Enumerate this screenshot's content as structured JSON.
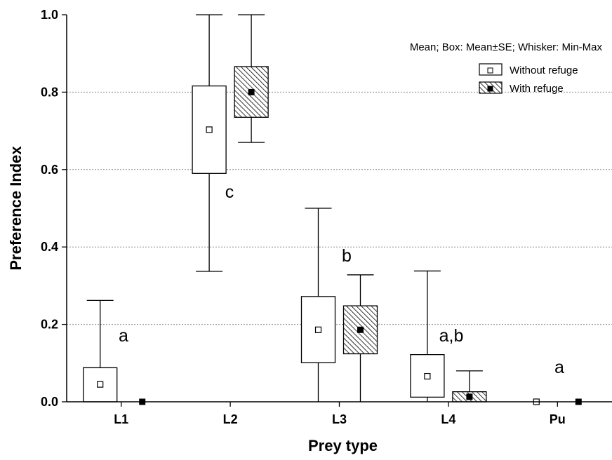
{
  "chart_data": {
    "type": "box",
    "xlabel": "Prey type",
    "ylabel": "Preference Index",
    "ylim": [
      0,
      1
    ],
    "y_ticks": [
      "0.0",
      "0.2",
      "0.4",
      "0.6",
      "0.8",
      "1.0"
    ],
    "y_tick_values": [
      0,
      0.2,
      0.4,
      0.6,
      0.8,
      1.0
    ],
    "categories": [
      "L1",
      "L2",
      "L3",
      "L4",
      "Pu"
    ],
    "grid": "horizontal dotted",
    "legend_position": "top-right",
    "legend_title": "Mean; Box: Mean±SE; Whisker: Min-Max",
    "series": [
      {
        "name": "Without refuge",
        "fill": "white",
        "marker": "hollow square",
        "mean": [
          0.045,
          0.703,
          0.186,
          0.066,
          0.0
        ],
        "box_low": [
          0.0,
          0.59,
          0.101,
          0.012,
          0.0
        ],
        "box_high": [
          0.088,
          0.816,
          0.272,
          0.122,
          0.0
        ],
        "min": [
          0.0,
          0.337,
          0.0,
          0.0,
          0.0
        ],
        "max": [
          0.262,
          1.0,
          0.5,
          0.338,
          0.0
        ]
      },
      {
        "name": "With refuge",
        "fill": "hatched",
        "marker": "filled square",
        "mean": [
          0.0,
          0.8,
          0.186,
          0.013,
          0.0
        ],
        "box_low": [
          0.0,
          0.735,
          0.124,
          0.0,
          0.0
        ],
        "box_high": [
          0.0,
          0.866,
          0.248,
          0.026,
          0.0
        ],
        "min": [
          0.0,
          0.67,
          0.0,
          0.0,
          0.0
        ],
        "max": [
          0.0,
          1.0,
          0.328,
          0.08,
          0.0
        ]
      }
    ],
    "annotations": [
      "a",
      "c",
      "b",
      "a,b",
      "a"
    ],
    "colors": {
      "axis": "#000000",
      "grid": "#888888",
      "hatch": "#000000"
    }
  }
}
